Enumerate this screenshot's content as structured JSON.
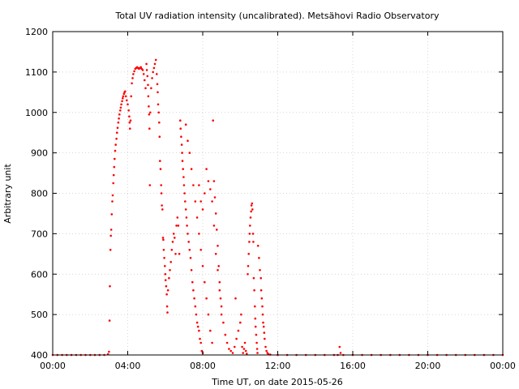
{
  "chart_data": {
    "type": "scatter",
    "title": "Total UV radiation intensity (uncalibrated). Metsähovi Radio Observatory",
    "xlabel": "Time UT, on date 2015-05-26",
    "ylabel": "Arbitrary unit",
    "x_unit": "hours UT",
    "xlim": [
      0,
      24
    ],
    "ylim": [
      400,
      1200
    ],
    "x_ticks": [
      0,
      4,
      8,
      12,
      16,
      20,
      24
    ],
    "x_tick_labels": [
      "00:00",
      "04:00",
      "08:00",
      "12:00",
      "16:00",
      "20:00",
      "00:00"
    ],
    "y_ticks": [
      400,
      500,
      600,
      700,
      800,
      900,
      1000,
      1100,
      1200
    ],
    "y_tick_labels": [
      "400",
      "500",
      "600",
      "700",
      "800",
      "900",
      "1000",
      "1100",
      "1200"
    ],
    "grid": true,
    "legend": "none",
    "point_color": "#ff0000",
    "series": [
      {
        "name": "",
        "points": [
          [
            0.0,
            400
          ],
          [
            0.25,
            400
          ],
          [
            0.5,
            400
          ],
          [
            0.75,
            400
          ],
          [
            1.0,
            400
          ],
          [
            1.25,
            400
          ],
          [
            1.5,
            400
          ],
          [
            1.75,
            400
          ],
          [
            2.0,
            400
          ],
          [
            2.25,
            400
          ],
          [
            2.5,
            400
          ],
          [
            2.75,
            400
          ],
          [
            2.95,
            402
          ],
          [
            3.0,
            408
          ],
          [
            3.03,
            485
          ],
          [
            3.05,
            570
          ],
          [
            3.08,
            660
          ],
          [
            3.1,
            695
          ],
          [
            3.12,
            710
          ],
          [
            3.15,
            748
          ],
          [
            3.18,
            780
          ],
          [
            3.2,
            795
          ],
          [
            3.23,
            825
          ],
          [
            3.25,
            845
          ],
          [
            3.28,
            865
          ],
          [
            3.3,
            885
          ],
          [
            3.33,
            905
          ],
          [
            3.36,
            920
          ],
          [
            3.4,
            935
          ],
          [
            3.43,
            950
          ],
          [
            3.46,
            962
          ],
          [
            3.5,
            975
          ],
          [
            3.53,
            985
          ],
          [
            3.56,
            995
          ],
          [
            3.6,
            1005
          ],
          [
            3.63,
            1012
          ],
          [
            3.66,
            1020
          ],
          [
            3.7,
            1028
          ],
          [
            3.73,
            1035
          ],
          [
            3.76,
            1040
          ],
          [
            3.8,
            1046
          ],
          [
            3.83,
            1050
          ],
          [
            3.86,
            1052
          ],
          [
            3.9,
            1040
          ],
          [
            3.95,
            1030
          ],
          [
            4.0,
            1020
          ],
          [
            4.05,
            1005
          ],
          [
            4.08,
            990
          ],
          [
            4.1,
            975
          ],
          [
            4.12,
            960
          ],
          [
            4.15,
            980
          ],
          [
            4.18,
            1040
          ],
          [
            4.22,
            1072
          ],
          [
            4.26,
            1085
          ],
          [
            4.3,
            1095
          ],
          [
            4.35,
            1102
          ],
          [
            4.4,
            1108
          ],
          [
            4.45,
            1110
          ],
          [
            4.5,
            1112
          ],
          [
            4.55,
            1110
          ],
          [
            4.6,
            1108
          ],
          [
            4.65,
            1110
          ],
          [
            4.7,
            1112
          ],
          [
            4.75,
            1108
          ],
          [
            4.8,
            1105
          ],
          [
            4.85,
            1095
          ],
          [
            4.9,
            1080
          ],
          [
            4.95,
            1060
          ],
          [
            5.0,
            1120
          ],
          [
            5.02,
            1105
          ],
          [
            5.05,
            1090
          ],
          [
            5.08,
            1068
          ],
          [
            5.1,
            1040
          ],
          [
            5.12,
            1015
          ],
          [
            5.14,
            995
          ],
          [
            5.16,
            960
          ],
          [
            5.18,
            820
          ],
          [
            5.2,
            1000
          ],
          [
            5.25,
            1060
          ],
          [
            5.3,
            1085
          ],
          [
            5.35,
            1100
          ],
          [
            5.4,
            1110
          ],
          [
            5.45,
            1120
          ],
          [
            5.5,
            1130
          ],
          [
            5.55,
            1095
          ],
          [
            5.58,
            1070
          ],
          [
            5.6,
            1050
          ],
          [
            5.62,
            1020
          ],
          [
            5.65,
            1000
          ],
          [
            5.68,
            975
          ],
          [
            5.7,
            940
          ],
          [
            5.72,
            880
          ],
          [
            5.75,
            860
          ],
          [
            5.78,
            820
          ],
          [
            5.8,
            800
          ],
          [
            5.82,
            770
          ],
          [
            5.85,
            760
          ],
          [
            5.88,
            690
          ],
          [
            5.9,
            685
          ],
          [
            5.92,
            660
          ],
          [
            5.95,
            640
          ],
          [
            5.98,
            620
          ],
          [
            6.0,
            600
          ],
          [
            6.02,
            585
          ],
          [
            6.05,
            570
          ],
          [
            6.08,
            550
          ],
          [
            6.1,
            520
          ],
          [
            6.12,
            505
          ],
          [
            6.15,
            560
          ],
          [
            6.2,
            590
          ],
          [
            6.25,
            610
          ],
          [
            6.3,
            630
          ],
          [
            6.35,
            660
          ],
          [
            6.4,
            680
          ],
          [
            6.45,
            700
          ],
          [
            6.5,
            690
          ],
          [
            6.55,
            650
          ],
          [
            6.6,
            720
          ],
          [
            6.65,
            740
          ],
          [
            6.7,
            720
          ],
          [
            6.75,
            650
          ],
          [
            6.8,
            980
          ],
          [
            6.82,
            960
          ],
          [
            6.85,
            940
          ],
          [
            6.88,
            920
          ],
          [
            6.9,
            900
          ],
          [
            6.92,
            880
          ],
          [
            6.95,
            860
          ],
          [
            6.98,
            840
          ],
          [
            7.0,
            820
          ],
          [
            7.03,
            800
          ],
          [
            7.06,
            780
          ],
          [
            7.1,
            760
          ],
          [
            7.13,
            740
          ],
          [
            7.16,
            720
          ],
          [
            7.2,
            700
          ],
          [
            7.25,
            680
          ],
          [
            7.3,
            660
          ],
          [
            7.35,
            640
          ],
          [
            7.4,
            610
          ],
          [
            7.45,
            580
          ],
          [
            7.5,
            560
          ],
          [
            7.55,
            540
          ],
          [
            7.6,
            520
          ],
          [
            7.65,
            500
          ],
          [
            7.7,
            480
          ],
          [
            7.75,
            470
          ],
          [
            7.8,
            460
          ],
          [
            7.85,
            440
          ],
          [
            7.9,
            430
          ],
          [
            7.95,
            410
          ],
          [
            8.0,
            405
          ],
          [
            7.1,
            970
          ],
          [
            7.2,
            930
          ],
          [
            7.3,
            900
          ],
          [
            7.4,
            860
          ],
          [
            7.5,
            820
          ],
          [
            7.6,
            780
          ],
          [
            7.7,
            740
          ],
          [
            7.8,
            700
          ],
          [
            7.9,
            660
          ],
          [
            8.0,
            620
          ],
          [
            8.1,
            580
          ],
          [
            8.2,
            540
          ],
          [
            8.3,
            500
          ],
          [
            8.4,
            460
          ],
          [
            8.5,
            430
          ],
          [
            8.55,
            980
          ],
          [
            8.6,
            830
          ],
          [
            8.65,
            790
          ],
          [
            8.7,
            750
          ],
          [
            8.75,
            710
          ],
          [
            8.8,
            670
          ],
          [
            8.85,
            620
          ],
          [
            8.9,
            580
          ],
          [
            8.95,
            540
          ],
          [
            9.0,
            500
          ],
          [
            8.2,
            860
          ],
          [
            8.3,
            830
          ],
          [
            8.4,
            810
          ],
          [
            8.5,
            780
          ],
          [
            8.1,
            800
          ],
          [
            7.8,
            820
          ],
          [
            7.9,
            780
          ],
          [
            8.0,
            760
          ],
          [
            8.6,
            720
          ],
          [
            8.7,
            650
          ],
          [
            8.8,
            610
          ],
          [
            8.9,
            560
          ],
          [
            9.0,
            520
          ],
          [
            9.1,
            480
          ],
          [
            9.2,
            450
          ],
          [
            9.3,
            430
          ],
          [
            9.4,
            415
          ],
          [
            9.5,
            410
          ],
          [
            9.6,
            405
          ],
          [
            9.7,
            420
          ],
          [
            9.8,
            440
          ],
          [
            9.9,
            460
          ],
          [
            10.0,
            480
          ],
          [
            10.05,
            500
          ],
          [
            9.75,
            540
          ],
          [
            10.1,
            420
          ],
          [
            10.15,
            405
          ],
          [
            10.2,
            415
          ],
          [
            10.25,
            430
          ],
          [
            10.3,
            410
          ],
          [
            10.35,
            403
          ],
          [
            10.4,
            600
          ],
          [
            10.42,
            620
          ],
          [
            10.45,
            650
          ],
          [
            10.48,
            680
          ],
          [
            10.5,
            700
          ],
          [
            10.52,
            720
          ],
          [
            10.55,
            740
          ],
          [
            10.58,
            755
          ],
          [
            10.6,
            770
          ],
          [
            10.63,
            775
          ],
          [
            10.65,
            760
          ],
          [
            10.68,
            700
          ],
          [
            10.7,
            680
          ],
          [
            10.72,
            590
          ],
          [
            10.75,
            560
          ],
          [
            10.78,
            520
          ],
          [
            10.8,
            490
          ],
          [
            10.82,
            470
          ],
          [
            10.85,
            450
          ],
          [
            10.88,
            430
          ],
          [
            10.9,
            415
          ],
          [
            10.92,
            405
          ],
          [
            10.95,
            670
          ],
          [
            11.0,
            640
          ],
          [
            11.05,
            610
          ],
          [
            11.1,
            590
          ],
          [
            11.12,
            560
          ],
          [
            11.15,
            540
          ],
          [
            11.18,
            520
          ],
          [
            11.2,
            500
          ],
          [
            11.22,
            480
          ],
          [
            11.25,
            470
          ],
          [
            11.28,
            455
          ],
          [
            11.3,
            440
          ],
          [
            11.35,
            420
          ],
          [
            11.4,
            410
          ],
          [
            11.45,
            405
          ],
          [
            11.5,
            402
          ],
          [
            11.6,
            401
          ],
          [
            12.0,
            400
          ],
          [
            12.5,
            400
          ],
          [
            13.0,
            400
          ],
          [
            13.5,
            400
          ],
          [
            14.0,
            400
          ],
          [
            14.5,
            400
          ],
          [
            15.0,
            400
          ],
          [
            15.2,
            400
          ],
          [
            15.3,
            420
          ],
          [
            15.35,
            405
          ],
          [
            15.5,
            400
          ],
          [
            16.0,
            400
          ],
          [
            16.5,
            400
          ],
          [
            17.0,
            400
          ],
          [
            17.5,
            400
          ],
          [
            18.0,
            400
          ],
          [
            18.5,
            400
          ],
          [
            19.0,
            400
          ],
          [
            19.5,
            400
          ],
          [
            20.0,
            400
          ],
          [
            20.5,
            400
          ],
          [
            21.0,
            400
          ],
          [
            21.5,
            400
          ],
          [
            22.0,
            400
          ],
          [
            22.5,
            400
          ],
          [
            23.0,
            400
          ],
          [
            23.5,
            400
          ],
          [
            24.0,
            400
          ]
        ]
      }
    ]
  }
}
